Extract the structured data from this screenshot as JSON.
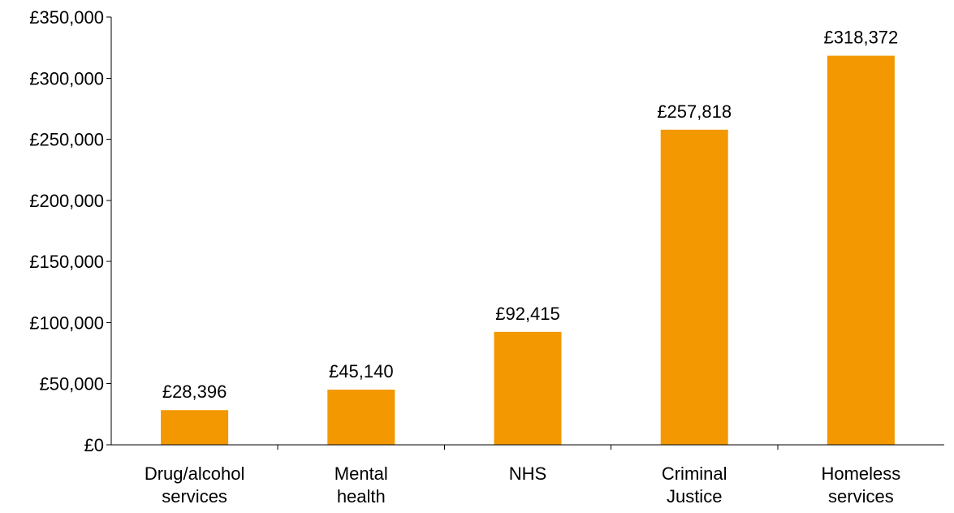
{
  "chart_data": {
    "type": "bar",
    "categories": [
      [
        "Drug/alcohol",
        "services"
      ],
      [
        "Mental",
        "health"
      ],
      [
        "NHS"
      ],
      [
        "Criminal",
        "Justice"
      ],
      [
        "Homeless",
        "services"
      ]
    ],
    "values": [
      28396,
      45140,
      92415,
      257818,
      318372
    ],
    "data_labels": [
      "£28,396",
      "£45,140",
      "£92,415",
      "£257,818",
      "£318,372"
    ],
    "ylim": [
      0,
      350000
    ],
    "y_ticks": [
      0,
      50000,
      100000,
      150000,
      200000,
      250000,
      300000,
      350000
    ],
    "y_tick_labels": [
      "£0",
      "£50,000",
      "£100,000",
      "£150,000",
      "£200,000",
      "£250,000",
      "£300,000",
      "£350,000"
    ],
    "title": "",
    "xlabel": "",
    "ylabel": "",
    "grid": false,
    "bar_color": "#F39800"
  }
}
